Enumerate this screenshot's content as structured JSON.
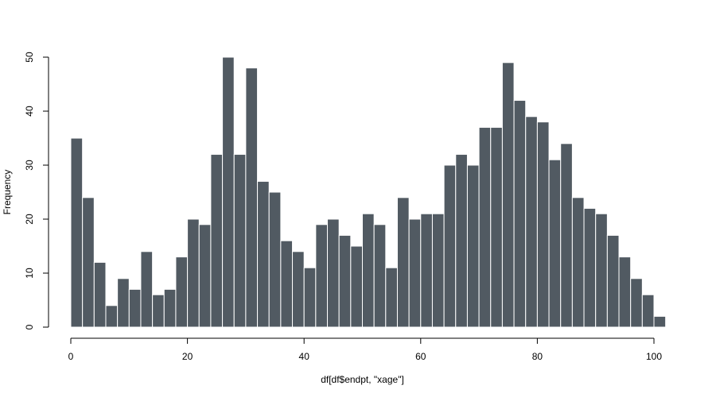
{
  "chart_data": {
    "type": "bar",
    "title": "",
    "xlabel": "df[df$endpt, \"xage\"]",
    "ylabel": "Frequency",
    "bin_width": 2,
    "bin_start": 0,
    "xlim": [
      0,
      102
    ],
    "ylim": [
      0,
      50
    ],
    "x_ticks": [
      0,
      20,
      40,
      60,
      80,
      100
    ],
    "y_ticks": [
      0,
      10,
      20,
      30,
      40,
      50
    ],
    "values": [
      35,
      24,
      12,
      4,
      9,
      7,
      14,
      6,
      7,
      13,
      20,
      19,
      32,
      50,
      32,
      48,
      27,
      25,
      16,
      14,
      11,
      19,
      20,
      17,
      15,
      21,
      19,
      11,
      24,
      20,
      21,
      21,
      30,
      32,
      30,
      37,
      37,
      49,
      42,
      39,
      38,
      31,
      34,
      24,
      22,
      21,
      17,
      13,
      9,
      6,
      2
    ],
    "bar_color": "#515a62",
    "bar_border_color": "#ffffff",
    "grid": false,
    "legend": "none"
  }
}
